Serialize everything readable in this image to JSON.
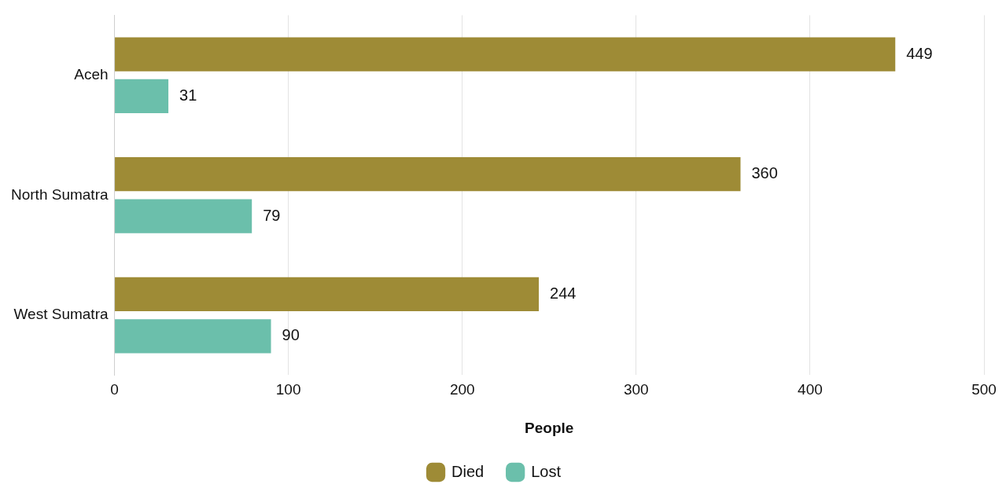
{
  "chart_data": {
    "type": "bar",
    "orientation": "horizontal",
    "xlabel": "People",
    "categories": [
      "Aceh",
      "North Sumatra",
      "West Sumatra"
    ],
    "series": [
      {
        "name": "Died",
        "color": "#9e8b36",
        "values": [
          449,
          360,
          244
        ]
      },
      {
        "name": "Lost",
        "color": "#6bbfab",
        "values": [
          31,
          79,
          90
        ]
      }
    ],
    "xlim": [
      0,
      500
    ],
    "xticks": [
      0,
      100,
      200,
      300,
      400,
      500
    ],
    "grid": "x",
    "legend": "bottom",
    "data_labels": true
  }
}
